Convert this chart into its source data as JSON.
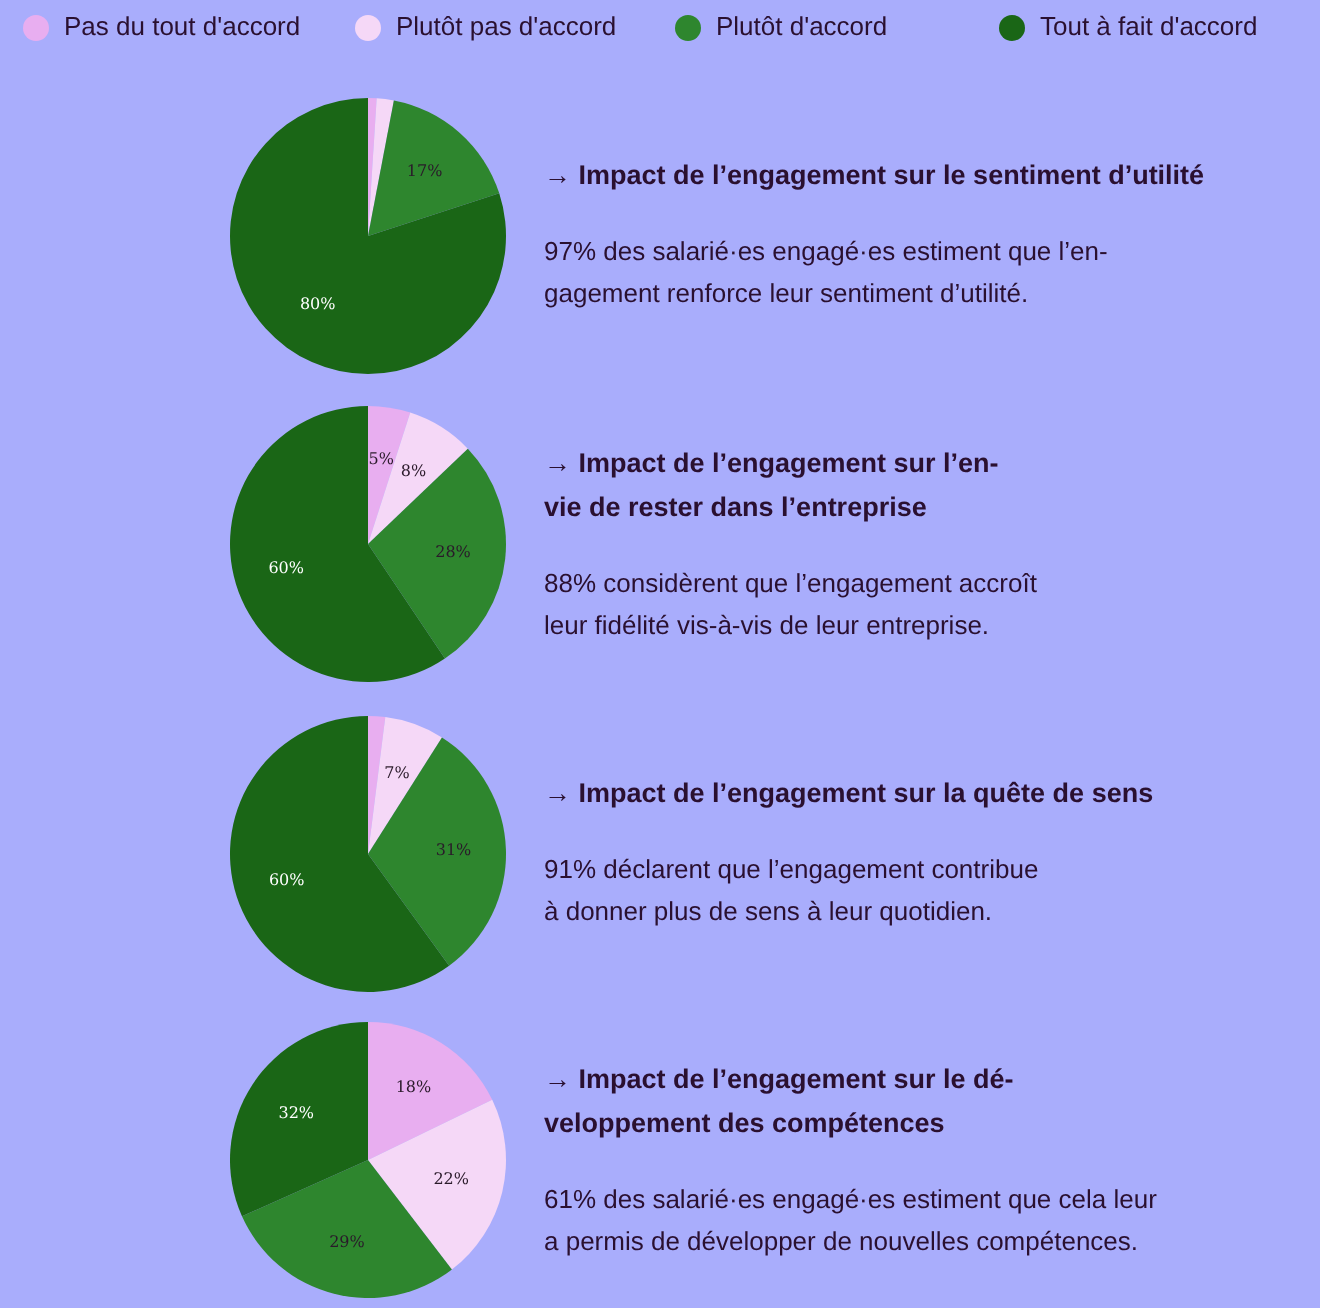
{
  "chart_data": [
    {
      "type": "pie",
      "title": "→ Impact de l’engagement sur le sentiment d’utilité",
      "annotations": [
        "97% des salarié·es engagé·es estiment que l’en-\ngagement renforce leur sentiment d’utilité."
      ],
      "categories": [
        "Pas du tout d'accord",
        "Plutôt pas d'accord",
        "Plutôt d'accord",
        "Tout à fait d'accord"
      ],
      "values": [
        1,
        2,
        17,
        80
      ],
      "value_labels": [
        null,
        null,
        "17%",
        "80%"
      ],
      "colors": [
        "#e8aef0",
        "#f5d8f7",
        "#2e862e",
        "#1a6616"
      ],
      "legend": "top"
    },
    {
      "type": "pie",
      "title": "→ Impact de l’engagement sur l’en-\nvie de rester dans l’entreprise",
      "annotations": [
        "88% considèrent que l’engagement accroît\nleur fidélité vis-à-vis de leur entreprise."
      ],
      "categories": [
        null,
        null,
        null,
        null
      ],
      "values": [
        5,
        8,
        28,
        60
      ],
      "value_labels": [
        "5%",
        "8%",
        "28%",
        "60%"
      ],
      "colors": [
        "#e8aef0",
        "#f5d8f7",
        "#2e862e",
        "#1a6616"
      ]
    },
    {
      "type": "pie",
      "title": "→ Impact de l’engagement sur la quête de sens",
      "annotations": [
        "91% déclarent que l’engagement contribue\nà donner plus de sens à leur quotidien."
      ],
      "categories": [
        null,
        null,
        null,
        null
      ],
      "values": [
        2,
        7,
        31,
        60
      ],
      "value_labels": [
        null,
        "7%",
        "31%",
        "60%"
      ],
      "colors": [
        "#e8aef0",
        "#f5d8f7",
        "#2e862e",
        "#1a6616"
      ]
    },
    {
      "type": "pie",
      "title": "→ Impact de l’engagement sur le dé-\nveloppement des compétences",
      "annotations": [
        "61% des salarié·es engagé·es estiment que cela leur\na permis de développer de nouvelles compétences."
      ],
      "categories": [
        null,
        null,
        null,
        null
      ],
      "values": [
        18,
        22,
        29,
        32
      ],
      "value_labels": [
        "18%",
        "22%",
        "29%",
        "32%"
      ],
      "colors": [
        "#e8aef0",
        "#f5d8f7",
        "#2e862e",
        "#1a6616"
      ]
    }
  ]
}
